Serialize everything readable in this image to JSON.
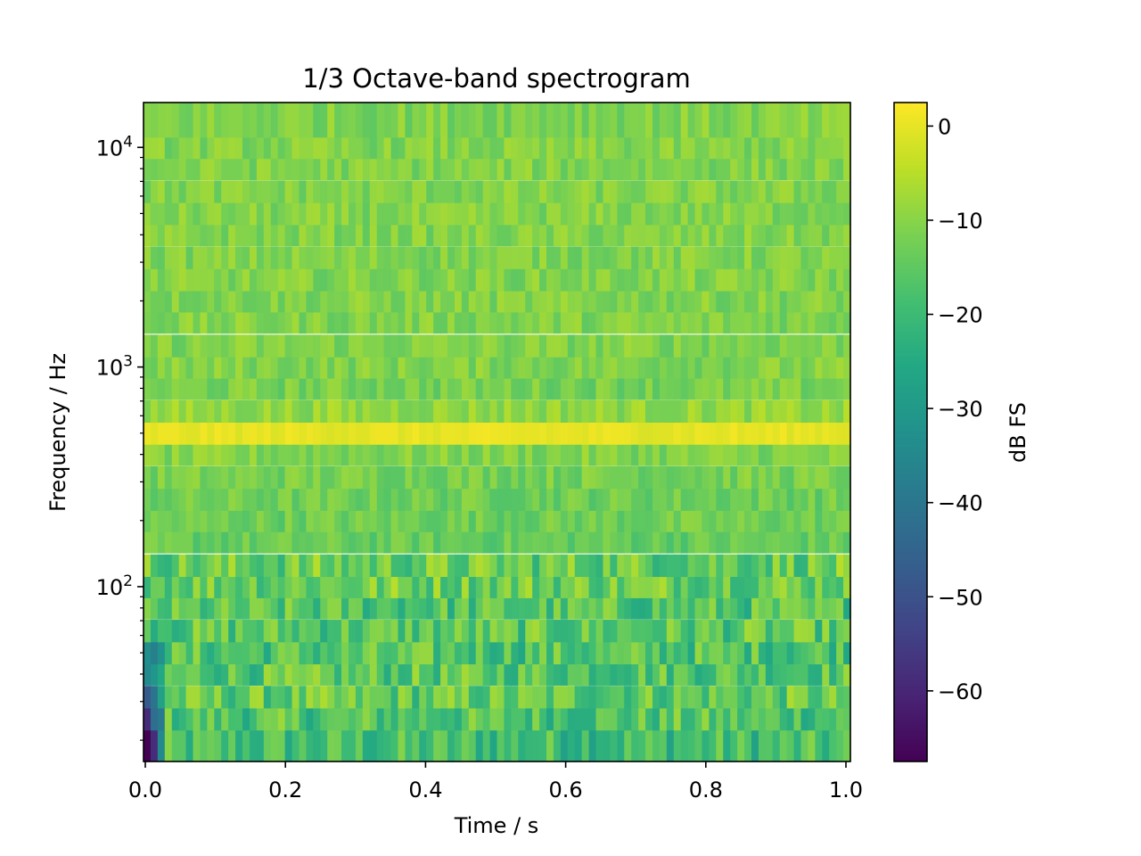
{
  "chart_data": {
    "type": "heatmap",
    "title": "1/3 Octave-band spectrogram",
    "xlabel": "Time / s",
    "ylabel": "Frequency / Hz",
    "colorbar_label": "dB FS",
    "colormap": "viridis",
    "x_scale": "linear",
    "y_scale": "log",
    "xlim": [
      0.0,
      1.0
    ],
    "ylim_hz": [
      16,
      16000
    ],
    "clim_db": [
      -67.5,
      2.5
    ],
    "x_ticks": [
      {
        "value": 0.0,
        "label": "0.0"
      },
      {
        "value": 0.2,
        "label": "0.2"
      },
      {
        "value": 0.4,
        "label": "0.4"
      },
      {
        "value": 0.6,
        "label": "0.6"
      },
      {
        "value": 0.8,
        "label": "0.8"
      },
      {
        "value": 1.0,
        "label": "1.0"
      }
    ],
    "y_ticks": [
      {
        "value": 100,
        "base": "10",
        "exp": "2"
      },
      {
        "value": 1000,
        "base": "10",
        "exp": "3"
      },
      {
        "value": 10000,
        "base": "10",
        "exp": "4"
      }
    ],
    "colorbar_ticks": [
      {
        "value": 0,
        "label": "0"
      },
      {
        "value": -10,
        "label": "−10"
      },
      {
        "value": -20,
        "label": "−20"
      },
      {
        "value": -30,
        "label": "−30"
      },
      {
        "value": -40,
        "label": "−40"
      },
      {
        "value": -50,
        "label": "−50"
      },
      {
        "value": -60,
        "label": "−60"
      }
    ],
    "time_frames": 100,
    "band_centers_hz": [
      20,
      25,
      31.5,
      40,
      50,
      63,
      80,
      100,
      125,
      160,
      200,
      250,
      315,
      400,
      500,
      630,
      800,
      1000,
      1250,
      1600,
      2000,
      2500,
      3150,
      4000,
      5000,
      6300,
      8000,
      10000,
      12500
    ],
    "band_mean_db": [
      -19,
      -17,
      -15,
      -16,
      -17,
      -16,
      -17,
      -13,
      -14,
      -14,
      -13,
      -13,
      -12,
      -11,
      0,
      -9,
      -12,
      -11,
      -11,
      -11,
      -11,
      -11,
      -11,
      -11,
      -11,
      -11,
      -11,
      -11,
      -11
    ]
  }
}
